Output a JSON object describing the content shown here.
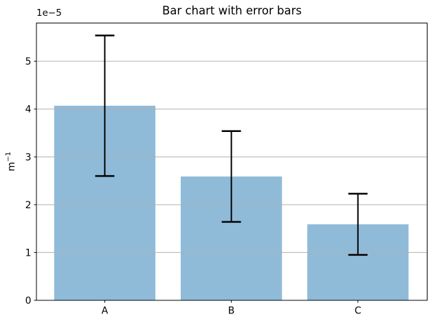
{
  "figure": {
    "title": "Bar chart with error bars",
    "ylabel": "m⁻¹",
    "ylabel_base": "m",
    "ylabel_sup": "−1",
    "offset_text": "1e−5"
  },
  "chart_data": {
    "type": "bar",
    "title": "Bar chart with error bars",
    "categories": [
      "A",
      "B",
      "C"
    ],
    "values": [
      4.07e-05,
      2.59e-05,
      1.59e-05
    ],
    "errors": [
      1.47e-05,
      9.5e-06,
      6.4e-06
    ],
    "xlabel": "",
    "ylabel": "m⁻¹",
    "offset_text": "1e−5",
    "ylim": [
      0,
      5.8e-05
    ],
    "yticks": [
      0,
      1,
      2,
      3,
      4,
      5
    ],
    "ytick_scale": 1e-05,
    "grid": "horizontal-y",
    "grid_on_top_of_bars": true,
    "legend": null,
    "error_caps": true,
    "colors": {
      "bar": "#8FBBD9",
      "error": "#000000",
      "grid": "#B0B0B0",
      "spine": "#000000",
      "text": "#000000",
      "background": "#FFFFFF"
    }
  }
}
